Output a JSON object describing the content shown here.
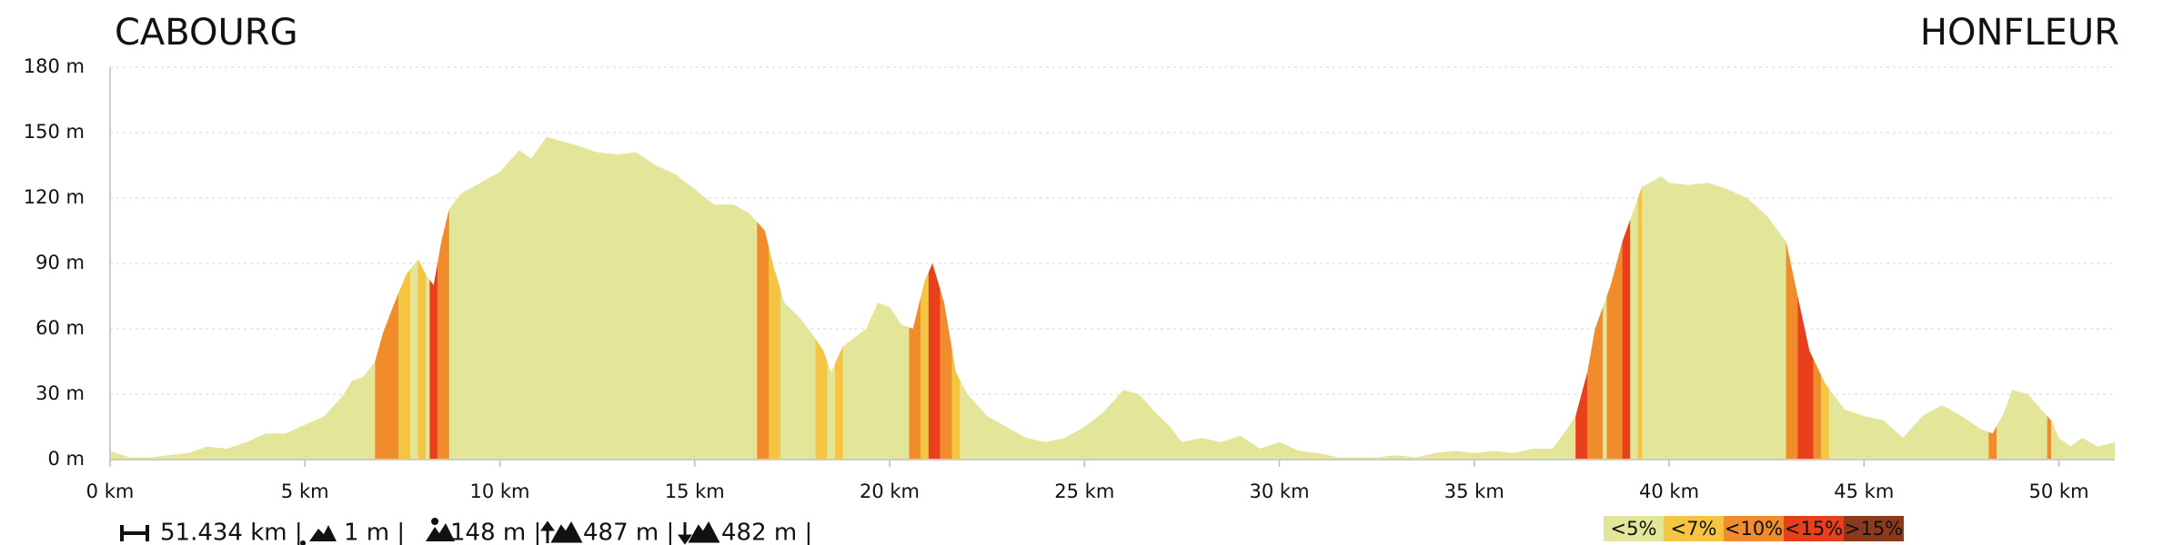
{
  "header": {
    "start": "CABOURG",
    "end": "HONFLEUR"
  },
  "chart_data": {
    "type": "area",
    "color": "#e3e599",
    "x": [
      0,
      0.5,
      1,
      1.5,
      2,
      2.5,
      3,
      3.5,
      4,
      4.5,
      5,
      5.5,
      6,
      6.2,
      6.5,
      6.8,
      7,
      7.3,
      7.6,
      7.9,
      8.1,
      8.3,
      8.5,
      8.7,
      9,
      9.5,
      10,
      10.5,
      10.8,
      11.2,
      11.6,
      12,
      12.5,
      13,
      13.5,
      14,
      14.5,
      15,
      15.5,
      16,
      16.4,
      16.8,
      17,
      17.3,
      17.7,
      18,
      18.3,
      18.5,
      18.8,
      19.1,
      19.4,
      19.7,
      20,
      20.3,
      20.6,
      20.9,
      21.1,
      21.4,
      21.7,
      22,
      22.5,
      23,
      23.5,
      24,
      24.5,
      25,
      25.5,
      26,
      26.4,
      26.8,
      27.2,
      27.5,
      28,
      28.5,
      29,
      29.5,
      30,
      30.5,
      31,
      31.5,
      32,
      32.5,
      33,
      33.5,
      34,
      34.5,
      35,
      35.5,
      36,
      36.5,
      37,
      37.3,
      37.6,
      37.9,
      38.1,
      38.5,
      38.8,
      39,
      39.3,
      39.8,
      40,
      40.5,
      41,
      41.5,
      42,
      42.5,
      43,
      43.3,
      43.6,
      44,
      44.5,
      45,
      45.5,
      46,
      46.5,
      47,
      47.5,
      48,
      48.3,
      48.6,
      48.8,
      49.2,
      49.5,
      49.8,
      50,
      50.3,
      50.6,
      51,
      51.434
    ],
    "values": [
      4,
      1,
      1,
      2,
      3,
      6,
      5,
      8,
      12,
      12,
      16,
      20,
      30,
      36,
      38,
      45,
      58,
      72,
      85,
      92,
      85,
      80,
      100,
      115,
      122,
      127,
      132,
      142,
      138,
      148,
      146,
      144,
      141,
      140,
      141,
      135,
      131,
      124,
      117,
      117,
      113,
      105,
      90,
      72,
      65,
      58,
      50,
      40,
      52,
      56,
      60,
      72,
      70,
      62,
      60,
      82,
      90,
      72,
      40,
      30,
      20,
      15,
      10,
      8,
      10,
      15,
      22,
      32,
      30,
      22,
      15,
      8,
      10,
      8,
      11,
      5,
      8,
      4,
      3,
      1,
      1,
      1,
      2,
      1,
      3,
      4,
      3,
      4,
      3,
      5,
      5,
      12,
      20,
      40,
      60,
      80,
      100,
      110,
      125,
      130,
      127,
      126,
      127,
      124,
      120,
      112,
      100,
      75,
      50,
      35,
      23,
      20,
      18,
      10,
      20,
      25,
      20,
      14,
      12,
      22,
      32,
      30,
      24,
      18,
      10,
      6,
      10,
      6,
      8
    ],
    "xlim": [
      0,
      51.434
    ],
    "ylim": [
      0,
      180
    ],
    "xticks": [
      {
        "value": 0,
        "label": "0 km"
      },
      {
        "value": 5,
        "label": "5 km"
      },
      {
        "value": 10,
        "label": "10 km"
      },
      {
        "value": 15,
        "label": "15 km"
      },
      {
        "value": 20,
        "label": "20 km"
      },
      {
        "value": 25,
        "label": "25 km"
      },
      {
        "value": 30,
        "label": "30 km"
      },
      {
        "value": 35,
        "label": "35 km"
      },
      {
        "value": 40,
        "label": "40 km"
      },
      {
        "value": 45,
        "label": "45 km"
      },
      {
        "value": 50,
        "label": "50 km"
      }
    ],
    "yticks": [
      {
        "value": 0,
        "label": "0 m"
      },
      {
        "value": 30,
        "label": "30 m"
      },
      {
        "value": 60,
        "label": "60 m"
      },
      {
        "value": 90,
        "label": "90 m"
      },
      {
        "value": 120,
        "label": "120 m"
      },
      {
        "value": 150,
        "label": "150 m"
      },
      {
        "value": 180,
        "label": "180 m"
      }
    ],
    "grid": true,
    "bands": [
      {
        "x": [
          6.8,
          7.4
        ],
        "color": "#f08c2b"
      },
      {
        "x": [
          7.4,
          7.7
        ],
        "color": "#f5c542"
      },
      {
        "x": [
          7.9,
          8.1
        ],
        "color": "#f5c542"
      },
      {
        "x": [
          8.2,
          8.4
        ],
        "color": "#e8401c"
      },
      {
        "x": [
          8.4,
          8.7
        ],
        "color": "#f08c2b"
      },
      {
        "x": [
          16.6,
          16.9
        ],
        "color": "#f08c2b"
      },
      {
        "x": [
          16.9,
          17.2
        ],
        "color": "#f5c542"
      },
      {
        "x": [
          18.1,
          18.4
        ],
        "color": "#f5c542"
      },
      {
        "x": [
          18.6,
          18.8
        ],
        "color": "#f5c542"
      },
      {
        "x": [
          20.5,
          20.8
        ],
        "color": "#f08c2b"
      },
      {
        "x": [
          20.8,
          21.0
        ],
        "color": "#f5c542"
      },
      {
        "x": [
          21.0,
          21.3
        ],
        "color": "#e8401c"
      },
      {
        "x": [
          21.3,
          21.6
        ],
        "color": "#f08c2b"
      },
      {
        "x": [
          21.6,
          21.8
        ],
        "color": "#f5c542"
      },
      {
        "x": [
          37.6,
          37.9
        ],
        "color": "#e8401c"
      },
      {
        "x": [
          37.9,
          38.3
        ],
        "color": "#f08c2b"
      },
      {
        "x": [
          38.4,
          38.8
        ],
        "color": "#f08c2b"
      },
      {
        "x": [
          38.8,
          39.0
        ],
        "color": "#e8401c"
      },
      {
        "x": [
          39.2,
          39.3
        ],
        "color": "#f5c542"
      },
      {
        "x": [
          43.0,
          43.3
        ],
        "color": "#f08c2b"
      },
      {
        "x": [
          43.3,
          43.7
        ],
        "color": "#e8401c"
      },
      {
        "x": [
          43.7,
          43.9
        ],
        "color": "#f08c2b"
      },
      {
        "x": [
          43.9,
          44.1
        ],
        "color": "#f5c542"
      },
      {
        "x": [
          48.2,
          48.4
        ],
        "color": "#f08c2b"
      },
      {
        "x": [
          49.7,
          49.8
        ],
        "color": "#f08c2b"
      }
    ],
    "legend": [
      {
        "name": "<5%",
        "color": "#e3e599"
      },
      {
        "name": "<7%",
        "color": "#f5c542"
      },
      {
        "name": "<10%",
        "color": "#f08c2b"
      },
      {
        "name": "<15%",
        "color": "#e8401c"
      },
      {
        "name": ">15%",
        "color": "#8b3a1e"
      }
    ]
  },
  "stats": [
    "51.434 km |",
    "1 m |",
    "148 m |",
    "487 m |",
    "482 m |"
  ]
}
